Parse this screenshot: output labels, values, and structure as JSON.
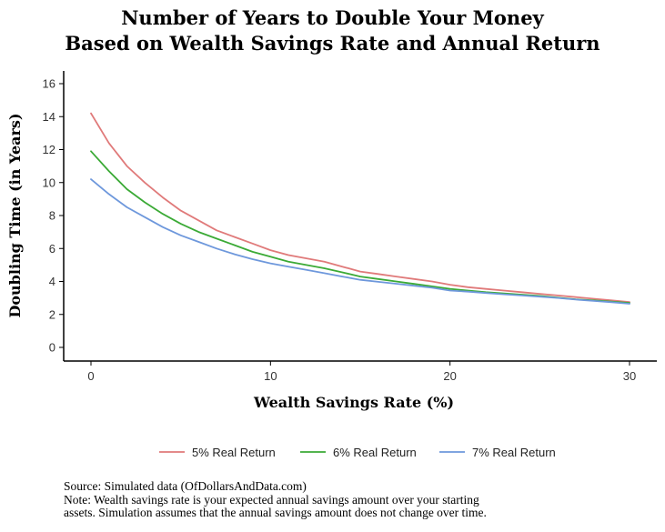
{
  "title_line1": "Number of Years to Double Your Money",
  "title_line2": "Based on Wealth Savings Rate and Annual Return",
  "source": "Source: Simulated data (OfDollarsAndData.com)",
  "note_line1": "Note: Wealth savings rate is your expected annual savings amount over your starting",
  "note_line2": "assets. Simulation assumes that the annual savings amount does not change over time.",
  "chart_data": {
    "type": "line",
    "xlabel": "Wealth Savings Rate (%)",
    "ylabel": "Doubling Time (in Years)",
    "xlim": [
      0,
      30
    ],
    "ylim": [
      0,
      16
    ],
    "xticks": [
      0,
      10,
      20,
      30
    ],
    "yticks": [
      0,
      2,
      4,
      6,
      8,
      10,
      12,
      14,
      16
    ],
    "grid": false,
    "legend_position": "bottom",
    "x": [
      0,
      1,
      2,
      3,
      4,
      5,
      6,
      7,
      8,
      9,
      10,
      11,
      12,
      13,
      14,
      15,
      16,
      17,
      18,
      19,
      20,
      21,
      22,
      23,
      24,
      25,
      26,
      27,
      28,
      29,
      30
    ],
    "series": [
      {
        "name": "5% Real Return",
        "color": "#E07A7A",
        "values": [
          14.2,
          12.4,
          11.0,
          10.0,
          9.1,
          8.3,
          7.7,
          7.1,
          6.7,
          6.3,
          5.9,
          5.6,
          5.4,
          5.2,
          4.9,
          4.6,
          4.45,
          4.3,
          4.15,
          4.0,
          3.8,
          3.65,
          3.55,
          3.45,
          3.35,
          3.25,
          3.15,
          3.05,
          2.95,
          2.85,
          2.75
        ]
      },
      {
        "name": "6% Real Return",
        "color": "#3BAA36",
        "values": [
          11.9,
          10.7,
          9.6,
          8.8,
          8.1,
          7.5,
          7.0,
          6.6,
          6.2,
          5.8,
          5.5,
          5.2,
          5.0,
          4.8,
          4.55,
          4.3,
          4.15,
          4.0,
          3.85,
          3.7,
          3.55,
          3.45,
          3.35,
          3.28,
          3.2,
          3.12,
          3.02,
          2.92,
          2.85,
          2.78,
          2.7
        ]
      },
      {
        "name": "7% Real Return",
        "color": "#6E98DC",
        "values": [
          10.2,
          9.3,
          8.5,
          7.9,
          7.3,
          6.8,
          6.4,
          6.0,
          5.65,
          5.35,
          5.1,
          4.9,
          4.7,
          4.5,
          4.3,
          4.1,
          3.98,
          3.86,
          3.74,
          3.62,
          3.45,
          3.38,
          3.3,
          3.22,
          3.15,
          3.08,
          3.0,
          2.9,
          2.82,
          2.74,
          2.65
        ]
      }
    ]
  }
}
